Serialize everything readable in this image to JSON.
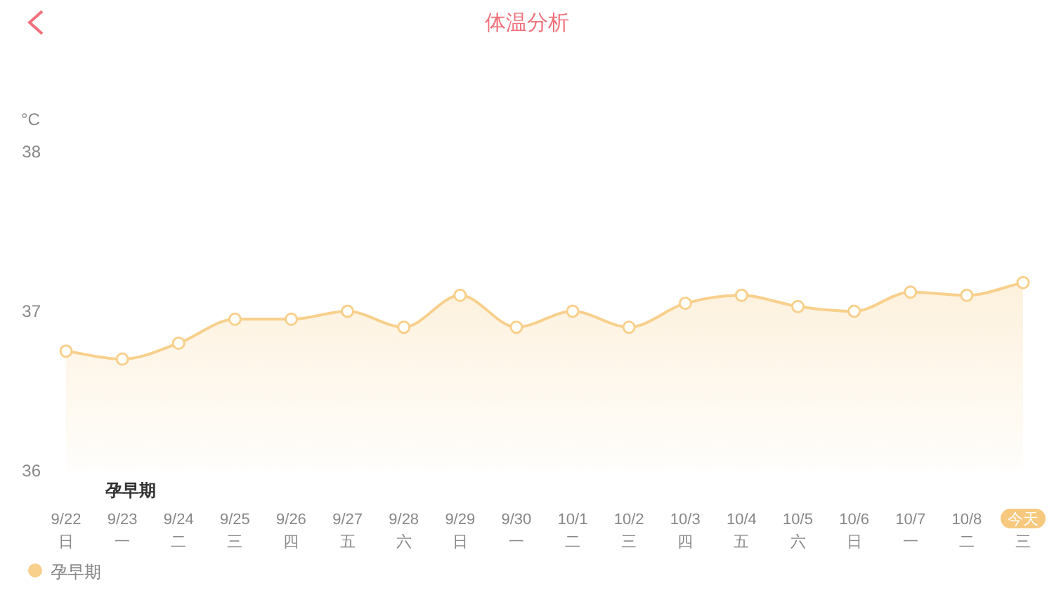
{
  "chart_data": {
    "type": "area",
    "title": "体温分析",
    "ylabel": "°C",
    "categories": [
      "9/22\n日",
      "9/23\n一",
      "9/24\n二",
      "9/25\n三",
      "9/26\n四",
      "9/27\n五",
      "9/28\n六",
      "9/29\n日",
      "9/30\n一",
      "10/1\n二",
      "10/2\n三",
      "10/3\n四",
      "10/4\n五",
      "10/5\n六",
      "10/6\n日",
      "10/7\n一",
      "10/8\n二",
      "今天三"
    ],
    "series": [
      {
        "name": "孕早期",
        "color": "#f8d08c",
        "values": [
          36.75,
          36.7,
          36.8,
          36.95,
          36.95,
          37.0,
          36.9,
          37.1,
          36.9,
          37.0,
          36.9,
          37.05,
          37.1,
          37.03,
          37.0,
          37.12,
          37.1,
          37.18
        ]
      }
    ],
    "ylim": [
      36,
      38
    ],
    "yticks": [
      36,
      37,
      38
    ],
    "marker": "circle",
    "legend": "bottom left",
    "annotations": [
      "孕早期"
    ]
  }
}
